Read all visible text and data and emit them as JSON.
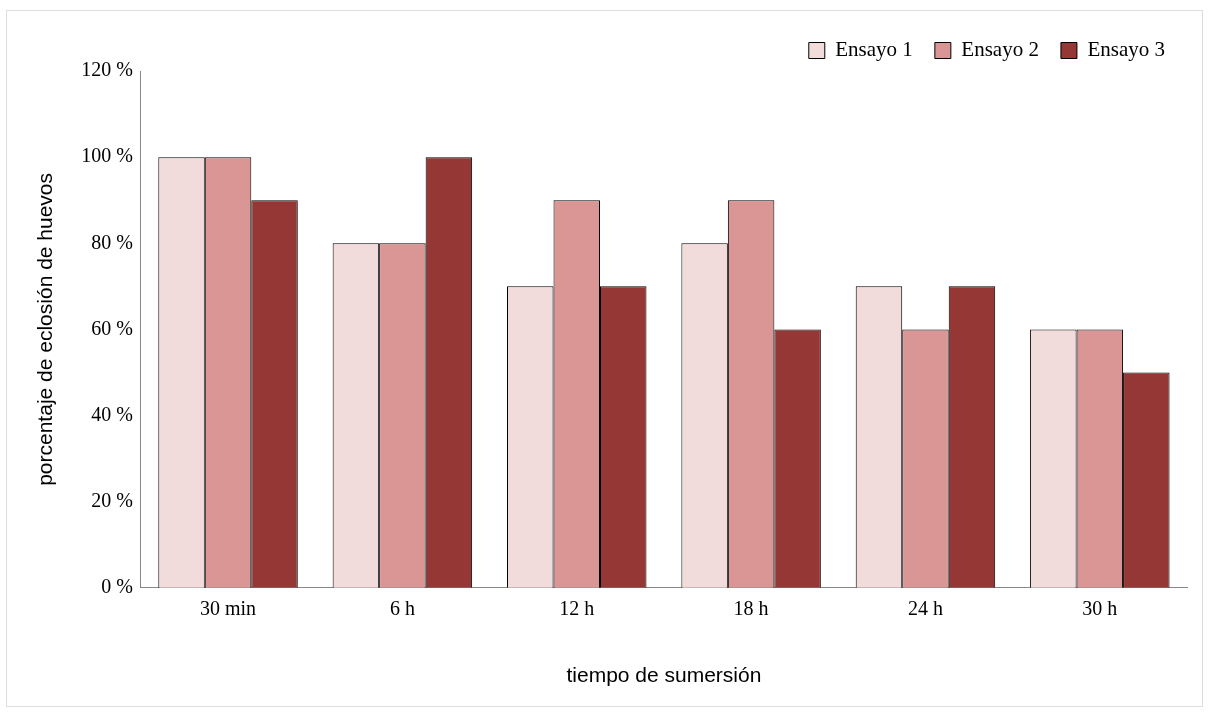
{
  "chart_data": {
    "type": "bar",
    "xlabel": "tiempo de sumersión",
    "ylabel": "porcentaje de eclosión de huevos",
    "categories": [
      "30 min",
      "6 h",
      "12 h",
      "18 h",
      "24 h",
      "30 h"
    ],
    "series": [
      {
        "name": "Ensayo 1",
        "color": "#f2dcdb",
        "values": [
          100,
          80,
          70,
          80,
          70,
          60
        ]
      },
      {
        "name": "Ensayo 2",
        "color": "#d99694",
        "values": [
          100,
          80,
          90,
          90,
          60,
          60
        ]
      },
      {
        "name": "Ensayo 3",
        "color": "#953735",
        "values": [
          90,
          100,
          70,
          60,
          70,
          50
        ]
      }
    ],
    "ylim": [
      0,
      120
    ],
    "yticks": [
      {
        "value": 0,
        "label": "0 %"
      },
      {
        "value": 20,
        "label": "20 %"
      },
      {
        "value": 40,
        "label": "40 %"
      },
      {
        "value": 60,
        "label": "60 %"
      },
      {
        "value": 80,
        "label": "80 %"
      },
      {
        "value": 100,
        "label": "100 %"
      },
      {
        "value": 120,
        "label": "120 %"
      }
    ],
    "grid": false,
    "legend": "top right"
  }
}
